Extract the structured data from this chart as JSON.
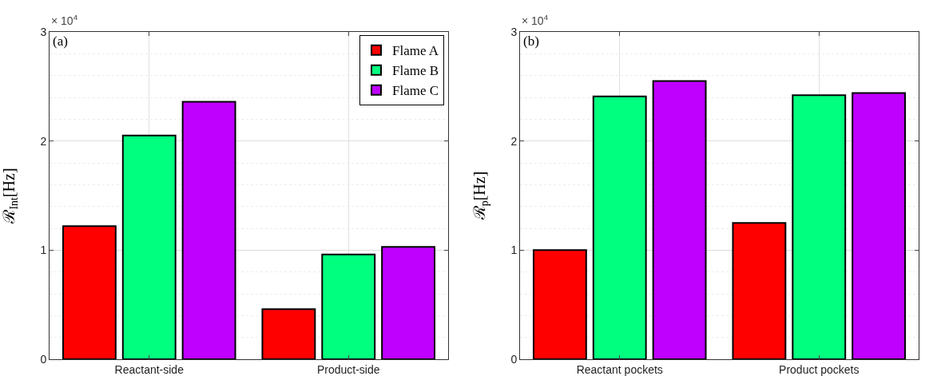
{
  "chart_data": [
    {
      "type": "bar",
      "categories": [
        "Reactant-side",
        "Product-side"
      ],
      "ylabel": "ℛ$_{Int}$[Hz]",
      "ylim": [
        0,
        3
      ],
      "yticks": [
        0,
        1,
        2,
        3
      ],
      "grid": true,
      "legend": "top right",
      "annotations": [
        "(a)",
        "× 10$^{4}$"
      ],
      "series": [
        {
          "name": "Flame A",
          "color": "#ff0000",
          "values": [
            1.22,
            0.46
          ]
        },
        {
          "name": "Flame B",
          "color": "#00ff7f",
          "values": [
            2.05,
            0.96
          ]
        },
        {
          "name": "Flame C",
          "color": "#bf00ff",
          "values": [
            2.36,
            1.03
          ]
        }
      ]
    },
    {
      "type": "bar",
      "categories": [
        "Reactant pockets",
        "Product pockets"
      ],
      "ylabel": "ℛ$_{p}$[Hz]",
      "ylim": [
        0,
        3
      ],
      "yticks": [
        0,
        1,
        2,
        3
      ],
      "grid": true,
      "legend": false,
      "annotations": [
        "(b)",
        "× 10$^{4}$"
      ],
      "series": [
        {
          "color": "#ff0000",
          "values": [
            1.0,
            1.25
          ]
        },
        {
          "color": "#00ff7f",
          "values": [
            2.41,
            2.42
          ]
        },
        {
          "color": "#bf00ff",
          "values": [
            2.55,
            2.44
          ]
        }
      ]
    }
  ]
}
